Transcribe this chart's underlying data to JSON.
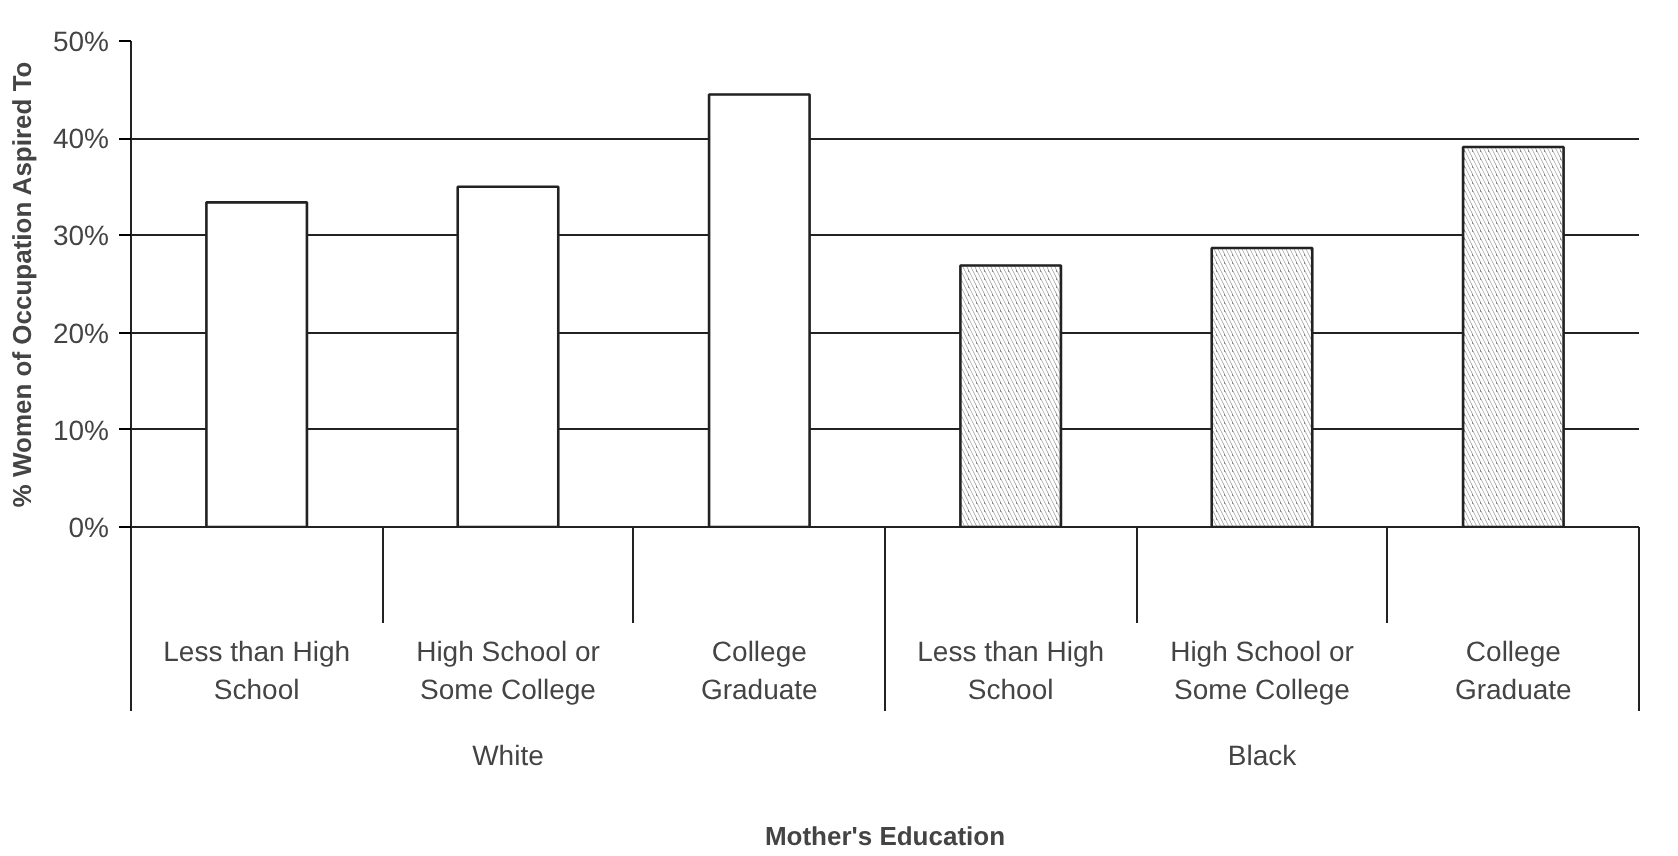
{
  "chart_data": {
    "type": "bar",
    "xlabel": "Mother's Education",
    "ylabel": "% Women of Occupation Aspired To",
    "categories": [
      "Less than High School",
      "High School or Some College",
      "College Graduate",
      "Less than High School",
      "High School or Some College",
      "College Graduate"
    ],
    "values": [
      33.4,
      35.0,
      44.5,
      26.9,
      28.7,
      39.1
    ],
    "colors": [
      "#ffffff",
      "#ffffff",
      "#ffffff",
      "#8c8c8c",
      "#8c8c8c",
      "#8c8c8c"
    ],
    "annotations": [
      "White",
      "Black"
    ],
    "ylim": [
      0,
      50
    ],
    "yticks": [
      {
        "value": 0,
        "label": "0%"
      },
      {
        "value": 10,
        "label": "10%"
      },
      {
        "value": 20,
        "label": "20%"
      },
      {
        "value": 30,
        "label": "30%"
      },
      {
        "value": 40,
        "label": "40%"
      },
      {
        "value": 50,
        "label": "50%"
      }
    ],
    "grid": "y"
  }
}
